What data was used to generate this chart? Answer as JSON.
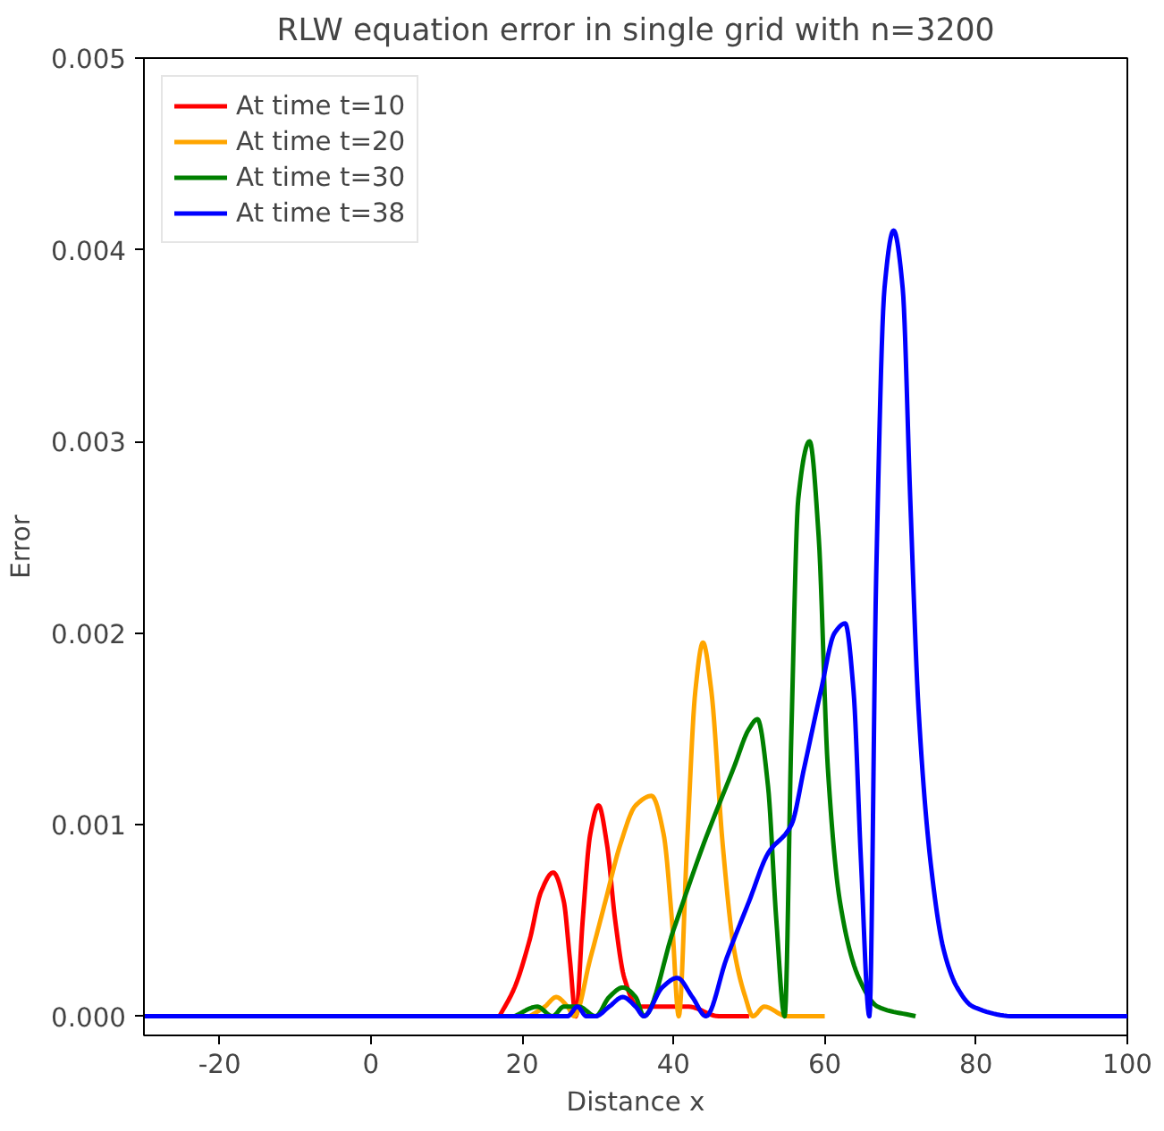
{
  "chart_data": {
    "type": "line",
    "title": "RLW equation error in single grid with n=3200",
    "xlabel": "Distance x",
    "ylabel": "Error",
    "xlim": [
      -30,
      100
    ],
    "ylim": [
      -0.0001,
      0.005
    ],
    "xticks": [
      -20,
      0,
      20,
      40,
      60,
      80,
      100
    ],
    "yticks": [
      {
        "value": 0,
        "label": "0.000"
      },
      {
        "value": 0.001,
        "label": "0.001"
      },
      {
        "value": 0.002,
        "label": "0.002"
      },
      {
        "value": 0.003,
        "label": "0.003"
      },
      {
        "value": 0.004,
        "label": "0.004"
      },
      {
        "value": 0.005,
        "label": "0.005"
      }
    ],
    "grid": false,
    "legend": "top left",
    "marker": "none",
    "line_style": "solid",
    "series": [
      {
        "name": "At time t=10",
        "color": "#ff0000",
        "x": [
          17,
          19,
          21,
          22.5,
          24.1,
          25.5,
          26.3,
          27.1,
          28,
          29,
          30.1,
          31.2,
          32.3,
          33.5,
          35.3,
          38,
          42,
          46,
          50
        ],
        "values": [
          0,
          0.00015,
          0.0004,
          0.00065,
          0.00075,
          0.0006,
          0.0003,
          0,
          0.0005,
          0.00095,
          0.0011,
          0.0009,
          0.0005,
          0.0002,
          5e-05,
          5e-05,
          5e-05,
          0,
          0
        ]
      },
      {
        "name": "At time t=20",
        "color": "#ffa500",
        "x": [
          21,
          23,
          24.5,
          26,
          26.9,
          29,
          31,
          33,
          35,
          37.1,
          38.7,
          39.8,
          40.7,
          41.8,
          42.9,
          43.9,
          45,
          46.5,
          48,
          49.5,
          50.5,
          52,
          55,
          60
        ],
        "values": [
          0,
          5e-05,
          0.0001,
          5e-05,
          0,
          0.0003,
          0.0006,
          0.0009,
          0.0011,
          0.00115,
          0.00095,
          0.0005,
          0,
          0.0009,
          0.0017,
          0.00195,
          0.0017,
          0.0009,
          0.00035,
          0.0001,
          0,
          5e-05,
          0,
          0
        ]
      },
      {
        "name": "At time t=30",
        "color": "#008000",
        "x": [
          19,
          22,
          24,
          25.5,
          27.5,
          29.7,
          31.5,
          33.3,
          35,
          36.1,
          40,
          44,
          48,
          50,
          51.1,
          52.5,
          53.6,
          54.7,
          55.6,
          56.5,
          58,
          59.2,
          60.4,
          62,
          64.5,
          67,
          72
        ],
        "values": [
          0,
          5e-05,
          0,
          5e-05,
          5e-05,
          0,
          0.0001,
          0.00015,
          0.0001,
          0,
          0.00045,
          0.0009,
          0.0013,
          0.0015,
          0.00155,
          0.0012,
          0.0005,
          0,
          0.0015,
          0.0027,
          0.003,
          0.0025,
          0.0013,
          0.0006,
          0.0002,
          5e-05,
          0
        ]
      },
      {
        "name": "At time t=38",
        "color": "#0000ff",
        "x": [
          -30,
          15,
          20,
          24,
          26,
          27.3,
          28.5,
          29.7,
          31.5,
          33.3,
          35,
          36.1,
          38.5,
          40.5,
          42.5,
          44.3,
          47,
          50,
          52.5,
          55.6,
          57.3,
          59.5,
          61.3,
          62.7,
          63.8,
          64.8,
          65.9,
          66.8,
          67.9,
          69.1,
          70.3,
          71.3,
          72.4,
          74,
          75.7,
          77.5,
          79.6,
          85,
          100
        ],
        "values": [
          0,
          0,
          0,
          0,
          0,
          5e-05,
          0,
          0,
          5e-05,
          0.0001,
          5e-05,
          0,
          0.00015,
          0.0002,
          0.0001,
          0,
          0.0003,
          0.0006,
          0.00085,
          0.001,
          0.0013,
          0.0017,
          0.002,
          0.00205,
          0.0017,
          0.0008,
          0,
          0.0023,
          0.0038,
          0.0041,
          0.0038,
          0.0027,
          0.0016,
          0.0008,
          0.00035,
          0.00015,
          5e-05,
          0,
          0
        ]
      }
    ]
  }
}
